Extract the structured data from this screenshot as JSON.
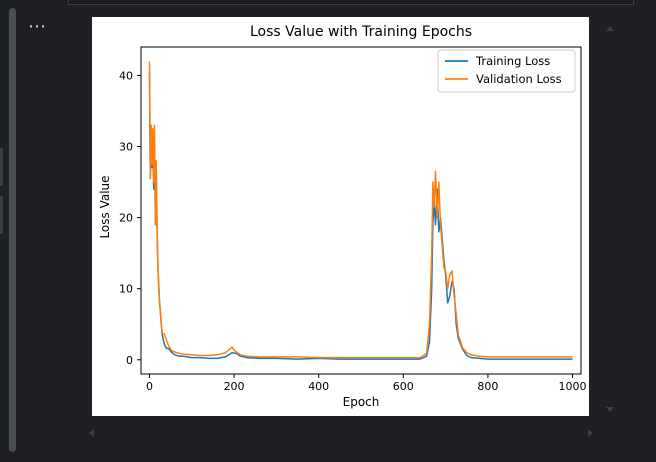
{
  "toolbar": {
    "more_icon": "⋯",
    "more_icon_name": "more-actions-icon"
  },
  "chart_data": {
    "type": "line",
    "title": "Loss Value with Training Epochs",
    "xlabel": "Epoch",
    "ylabel": "Loss Value",
    "xlim": [
      -20,
      1020
    ],
    "ylim": [
      -2,
      44
    ],
    "xticks": [
      0,
      200,
      400,
      600,
      800,
      1000
    ],
    "yticks": [
      0,
      10,
      20,
      30,
      40
    ],
    "legend_position": "top-right",
    "grid": false,
    "series": [
      {
        "name": "Training Loss",
        "color": "#1f77b4",
        "x": [
          0,
          2,
          4,
          6,
          8,
          10,
          12,
          14,
          16,
          18,
          20,
          22,
          24,
          26,
          28,
          30,
          35,
          40,
          45,
          50,
          55,
          60,
          70,
          80,
          100,
          120,
          140,
          160,
          180,
          195,
          205,
          215,
          230,
          260,
          300,
          350,
          400,
          450,
          500,
          550,
          600,
          640,
          655,
          662,
          667,
          670,
          673,
          676,
          680,
          684,
          688,
          692,
          696,
          700,
          705,
          710,
          715,
          720,
          725,
          730,
          740,
          750,
          760,
          780,
          800,
          850,
          900,
          950,
          1000
        ],
        "y": [
          40.5,
          25.5,
          32,
          27,
          31.5,
          24,
          30,
          19,
          27,
          18,
          13,
          10,
          8,
          6.5,
          5,
          3.5,
          2.2,
          1.6,
          1.6,
          1.2,
          0.9,
          0.7,
          0.5,
          0.5,
          0.3,
          0.3,
          0.2,
          0.2,
          0.4,
          1.0,
          0.9,
          0.5,
          0.3,
          0.2,
          0.2,
          0.1,
          0.2,
          0.1,
          0.1,
          0.1,
          0.1,
          0.1,
          0.5,
          2.5,
          10,
          19.5,
          22,
          19,
          24,
          18,
          20,
          17,
          14,
          12,
          8,
          9,
          11,
          10,
          5,
          3,
          1.5,
          0.6,
          0.3,
          0.2,
          0.1,
          0.1,
          0.1,
          0.1,
          0.1
        ]
      },
      {
        "name": "Validation Loss",
        "color": "#ff7f0e",
        "x": [
          0,
          2,
          4,
          6,
          8,
          10,
          12,
          14,
          16,
          18,
          20,
          22,
          24,
          26,
          28,
          30,
          35,
          40,
          45,
          50,
          55,
          60,
          70,
          80,
          100,
          120,
          140,
          160,
          180,
          195,
          200,
          205,
          215,
          230,
          260,
          300,
          350,
          400,
          450,
          500,
          550,
          600,
          640,
          655,
          662,
          667,
          670,
          673,
          676,
          680,
          684,
          688,
          692,
          696,
          700,
          705,
          710,
          715,
          720,
          725,
          730,
          740,
          750,
          760,
          780,
          800,
          850,
          900,
          950,
          1000
        ],
        "y": [
          42,
          25.5,
          33,
          27.5,
          32.5,
          25,
          33,
          19,
          28,
          19,
          13.5,
          10.5,
          8,
          6.5,
          5.2,
          3.8,
          3.6,
          2.8,
          2,
          1.5,
          1.2,
          1.1,
          0.9,
          0.8,
          0.7,
          0.6,
          0.6,
          0.7,
          1.0,
          1.8,
          1.4,
          1.1,
          0.7,
          0.5,
          0.4,
          0.4,
          0.4,
          0.3,
          0.3,
          0.3,
          0.3,
          0.3,
          0.3,
          0.9,
          5,
          15,
          25,
          21.5,
          26.5,
          20,
          25,
          19,
          16,
          13,
          12.5,
          10,
          12,
          12.5,
          9,
          6.5,
          3.5,
          1.7,
          1.0,
          0.7,
          0.5,
          0.4,
          0.4,
          0.4,
          0.4,
          0.4
        ]
      }
    ]
  }
}
